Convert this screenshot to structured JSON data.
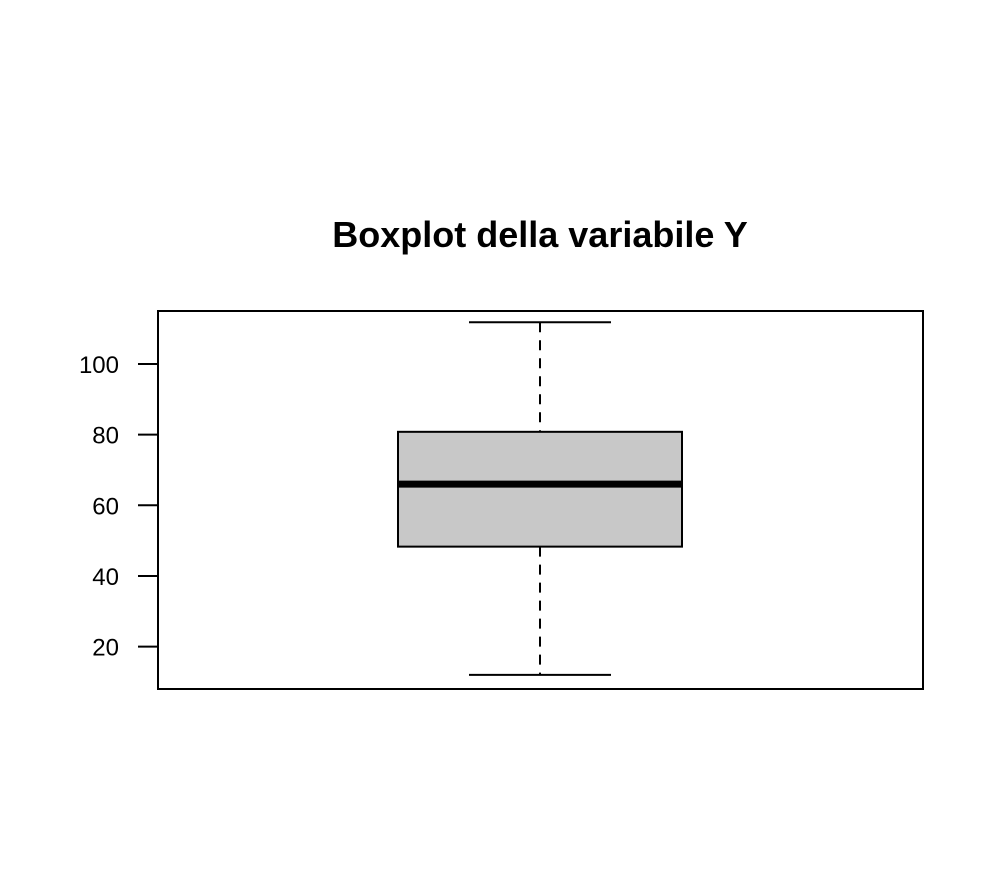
{
  "chart_data": {
    "type": "box",
    "title": "Boxplot della variabile Y",
    "xlabel": "",
    "ylabel": "",
    "ylim": [
      8,
      115
    ],
    "yticks": [
      20,
      40,
      60,
      80,
      100
    ],
    "ytick_labels": [
      "20",
      "40",
      "60",
      "80",
      "100"
    ],
    "grid": false,
    "boxes": [
      {
        "whisker_low": 12,
        "q1": 48.3,
        "median": 66,
        "q3": 80.8,
        "whisker_high": 111.8
      }
    ],
    "box_fill": "#c8c8c8",
    "line_color": "#000000"
  }
}
